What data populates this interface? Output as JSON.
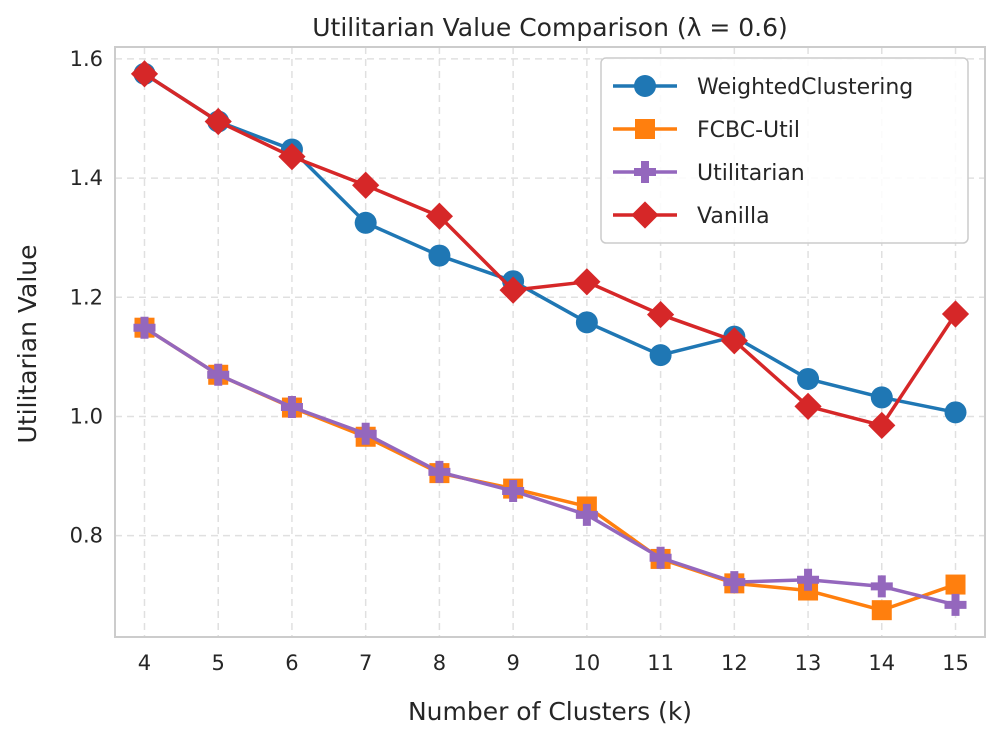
{
  "chart_data": {
    "type": "line",
    "title": "Utilitarian Value Comparison (λ = 0.6)",
    "xlabel": "Number of Clusters (k)",
    "ylabel": "Utilitarian Value",
    "x": [
      4,
      5,
      6,
      7,
      8,
      9,
      10,
      11,
      12,
      13,
      14,
      15
    ],
    "xticks": [
      "4",
      "5",
      "6",
      "7",
      "8",
      "9",
      "10",
      "11",
      "12",
      "13",
      "14",
      "15"
    ],
    "ylim": [
      0.63,
      1.62
    ],
    "yticks": [
      0.8,
      1.0,
      1.2,
      1.4,
      1.6
    ],
    "ytick_labels": [
      "0.8",
      "1.0",
      "1.2",
      "1.4",
      "1.6"
    ],
    "grid": true,
    "legend_position": "upper-right",
    "series": [
      {
        "name": "WeightedClustering",
        "color": "#1f77b4",
        "marker": "circle",
        "values": [
          1.575,
          1.495,
          1.448,
          1.325,
          1.27,
          1.227,
          1.158,
          1.103,
          1.134,
          1.063,
          1.032,
          1.007
        ]
      },
      {
        "name": "FCBC-Util",
        "color": "#ff7f0e",
        "marker": "square",
        "values": [
          1.149,
          1.07,
          1.015,
          0.966,
          0.905,
          0.879,
          0.849,
          0.761,
          0.72,
          0.708,
          0.675,
          0.718
        ]
      },
      {
        "name": "Utilitarian",
        "color": "#9467bd",
        "marker": "plus",
        "values": [
          1.149,
          1.07,
          1.016,
          0.971,
          0.907,
          0.875,
          0.835,
          0.763,
          0.722,
          0.726,
          0.715,
          0.684
        ]
      },
      {
        "name": "Vanilla",
        "color": "#d62728",
        "marker": "diamond",
        "values": [
          1.575,
          1.495,
          1.436,
          1.388,
          1.336,
          1.212,
          1.226,
          1.171,
          1.127,
          1.017,
          0.985,
          1.172
        ]
      }
    ]
  }
}
